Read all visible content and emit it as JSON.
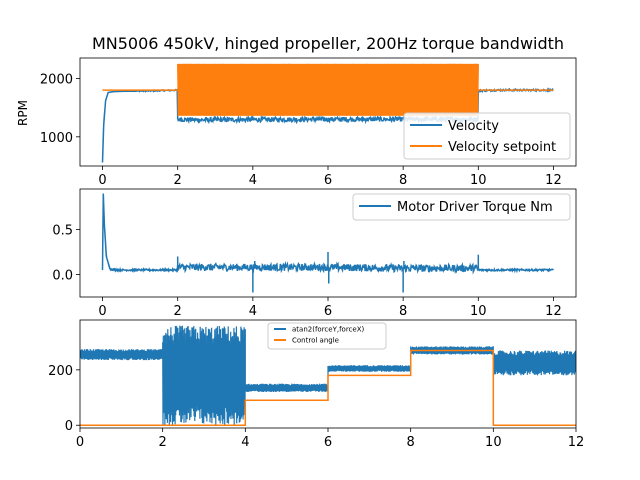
{
  "colors": {
    "blue": "#1f77b4",
    "orange": "#ff7f0e"
  },
  "chart_data": [
    {
      "type": "line",
      "title": "MN5006 450kV, hinged propeller, 200Hz torque bandwidth",
      "ylabel": "RPM",
      "xlim": [
        -0.6,
        12.6
      ],
      "ylim": [
        500,
        2350
      ],
      "xticks": [
        0,
        2,
        4,
        6,
        8,
        10,
        12
      ],
      "xtick_labels": [
        "0",
        "2",
        "4",
        "6",
        "8",
        "10",
        "12"
      ],
      "yticks": [
        1000,
        2000
      ],
      "ytick_labels": [
        "1000",
        "2000"
      ],
      "legend": "lower-right",
      "series": [
        {
          "name": "Velocity",
          "color": "#1f77b4",
          "x": [
            0,
            0.03,
            0.08,
            0.15,
            0.3,
            0.6,
            1.0,
            1.5,
            1.99,
            2.0,
            2.5,
            4.0,
            6.0,
            8.0,
            9.99,
            10.0,
            10.5,
            11.0,
            12.0
          ],
          "y": [
            560,
            1200,
            1620,
            1760,
            1775,
            1780,
            1785,
            1790,
            1800,
            1300,
            1290,
            1295,
            1300,
            1300,
            1300,
            1790,
            1800,
            1800,
            1800
          ],
          "noise": [
            0,
            0,
            0,
            0,
            0,
            0,
            10,
            10,
            10,
            40,
            40,
            40,
            40,
            40,
            40,
            15,
            15,
            15,
            15
          ]
        },
        {
          "name": "Velocity setpoint",
          "color": "#ff7f0e",
          "x": [
            0,
            2,
            2,
            10,
            10,
            12
          ],
          "y": [
            1800,
            1800,
            1800,
            1800,
            1800,
            1800
          ],
          "band": {
            "x": [
              2,
              10
            ],
            "low": 1360,
            "high": 2250
          }
        }
      ]
    },
    {
      "type": "line",
      "title": "",
      "ylabel": "",
      "xlim": [
        -0.6,
        12.6
      ],
      "ylim": [
        -0.25,
        0.95
      ],
      "xticks": [
        0,
        2,
        4,
        6,
        8,
        10,
        12
      ],
      "xtick_labels": [
        "0",
        "2",
        "4",
        "6",
        "8",
        "10",
        "12"
      ],
      "yticks": [
        0.0,
        0.5
      ],
      "ytick_labels": [
        "0.0",
        "0.5"
      ],
      "legend": "upper-right",
      "series": [
        {
          "name": "Motor Driver Torque Nm",
          "color": "#1f77b4",
          "x": [
            0,
            0.02,
            0.05,
            0.1,
            0.2,
            0.4,
            1.0,
            1.99,
            2.0,
            4.0,
            6.0,
            8.0,
            9.99,
            10.0,
            11.0,
            12.0
          ],
          "y": [
            0.05,
            0.9,
            0.55,
            0.2,
            0.06,
            0.05,
            0.05,
            0.05,
            0.08,
            0.08,
            0.08,
            0.07,
            0.07,
            0.05,
            0.05,
            0.05
          ],
          "noise": [
            0,
            0,
            0,
            0,
            0.01,
            0.01,
            0.01,
            0.01,
            0.04,
            0.04,
            0.04,
            0.04,
            0.04,
            0.01,
            0.01,
            0.01
          ],
          "spikes": [
            {
              "x": 2.0,
              "y": 0.2
            },
            {
              "x": 4.0,
              "y": -0.2
            },
            {
              "x": 4.05,
              "y": 0.15
            },
            {
              "x": 6.0,
              "y": 0.25
            },
            {
              "x": 6.02,
              "y": -0.1
            },
            {
              "x": 8.0,
              "y": -0.2
            },
            {
              "x": 8.02,
              "y": 0.15
            },
            {
              "x": 10.0,
              "y": 0.22
            }
          ]
        }
      ]
    },
    {
      "type": "line",
      "title": "",
      "ylabel": "",
      "xlim": [
        0,
        12
      ],
      "ylim": [
        -10,
        380
      ],
      "xticks": [
        0,
        2,
        4,
        6,
        8,
        10,
        12
      ],
      "xtick_labels": [
        "0",
        "2",
        "4",
        "6",
        "8",
        "10",
        "12"
      ],
      "yticks": [
        0,
        200
      ],
      "ytick_labels": [
        "0",
        "200"
      ],
      "legend": "upper-center",
      "series": [
        {
          "name": "atan2(forceY,forceX)",
          "color": "#1f77b4",
          "segments": [
            {
              "x": [
                0,
                2
              ],
              "mid": 255,
              "amp": 20
            },
            {
              "x": [
                2,
                4
              ],
              "mid": 180,
              "amp": 180
            },
            {
              "x": [
                4,
                6
              ],
              "mid": 135,
              "amp": 15
            },
            {
              "x": [
                6,
                8
              ],
              "mid": 205,
              "amp": 12
            },
            {
              "x": [
                8,
                10
              ],
              "mid": 270,
              "amp": 15
            },
            {
              "x": [
                10,
                12
              ],
              "mid": 225,
              "amp": 45
            }
          ]
        },
        {
          "name": "Control angle",
          "color": "#ff7f0e",
          "x": [
            0,
            4,
            4,
            6,
            6,
            8,
            8,
            10,
            10,
            12
          ],
          "y": [
            0,
            0,
            90,
            90,
            180,
            180,
            270,
            270,
            0,
            0
          ]
        }
      ]
    }
  ]
}
